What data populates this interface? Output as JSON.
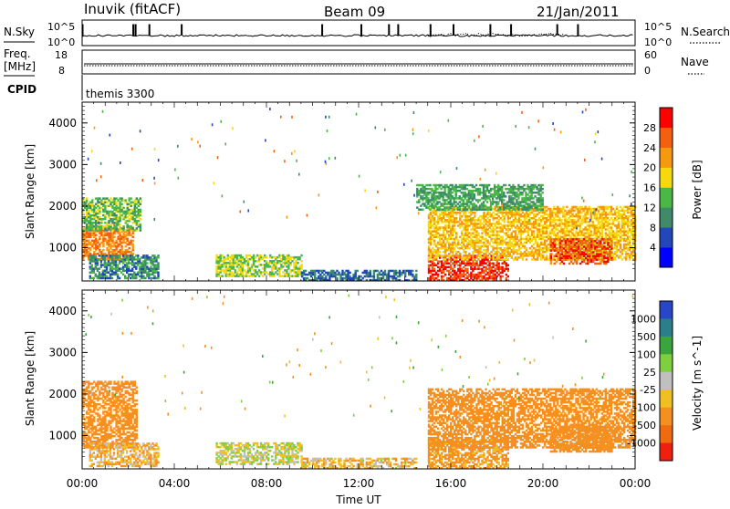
{
  "header": {
    "station": "Inuvik (fitACF)",
    "beam": "Beam 09",
    "date": "21/Jan/2011"
  },
  "strip_nsky": {
    "left_label": "N.Sky",
    "top_tick": "10^5",
    "bottom_tick": "10^0",
    "right_label": "N.Search",
    "right_top_tick": "10^5",
    "right_bottom_tick": "10^0"
  },
  "strip_freq": {
    "left_label_1": "Freq.",
    "left_label_2": "[MHz]",
    "left_top_tick": "18",
    "left_bottom_tick": "8",
    "right_label": "Nave",
    "right_top_tick": "60",
    "right_bottom_tick": "0"
  },
  "strip_cpid": {
    "left_label": "CPID",
    "program": "themis 3300"
  },
  "colors": {
    "power": [
      "#0000ff",
      "#2147b8",
      "#3e8a6a",
      "#4bb846",
      "#f5d90f",
      "#f59a0f",
      "#f5600f",
      "#ff0000"
    ],
    "velocity": [
      "#2846c8",
      "#2b7f8a",
      "#3aa53a",
      "#7fd040",
      "#c0c0c0",
      "#f0c020",
      "#f59020",
      "#f06a10",
      "#f02010"
    ]
  },
  "chart_data": [
    {
      "type": "heatmap",
      "name": "power",
      "ylabel": "Slant Range [km]",
      "ylim": [
        200,
        4500
      ],
      "y_ticks": [
        "1000",
        "2000",
        "3000",
        "4000"
      ],
      "colorbar_label": "Power [dB]",
      "colorbar_ticks": [
        "4",
        "8",
        "12",
        "16",
        "20",
        "24",
        "28"
      ],
      "colorbar_range": [
        0,
        32
      ],
      "regions": [
        {
          "t0": 0.0,
          "t1": 2.2,
          "r0": 700,
          "r1": 1500,
          "value": 24
        },
        {
          "t0": 0.0,
          "t1": 2.5,
          "r0": 1400,
          "r1": 2200,
          "value": 14
        },
        {
          "t0": 0.3,
          "t1": 3.3,
          "r0": 250,
          "r1": 800,
          "value": 10
        },
        {
          "t0": 5.8,
          "t1": 9.5,
          "r0": 300,
          "r1": 800,
          "value": 16
        },
        {
          "t0": 9.5,
          "t1": 14.5,
          "r0": 200,
          "r1": 450,
          "value": 8
        },
        {
          "t0": 15.0,
          "t1": 18.5,
          "r0": 200,
          "r1": 800,
          "value": 28
        },
        {
          "t0": 15.0,
          "t1": 24.0,
          "r0": 700,
          "r1": 2000,
          "value": 20
        },
        {
          "t0": 20.3,
          "t1": 23.0,
          "r0": 600,
          "r1": 1200,
          "value": 27
        },
        {
          "t0": 14.5,
          "t1": 20.0,
          "r0": 1900,
          "r1": 2500,
          "value": 12
        }
      ]
    },
    {
      "type": "heatmap",
      "name": "velocity",
      "ylabel": "Slant Range [km]",
      "xlabel": "Time UT",
      "ylim": [
        200,
        4500
      ],
      "y_ticks": [
        "1000",
        "2000",
        "3000",
        "4000"
      ],
      "x_ticks": [
        "00:00",
        "04:00",
        "08:00",
        "12:00",
        "16:00",
        "20:00",
        "00:00"
      ],
      "xlim": [
        0,
        24
      ],
      "colorbar_label": "Velocity [m s^-1]",
      "colorbar_ticks": [
        "1000",
        "500",
        "100",
        "25",
        "-25",
        "-100",
        "-500",
        "-1000"
      ],
      "regions": [
        {
          "t0": 0.0,
          "t1": 2.4,
          "r0": 700,
          "r1": 2300,
          "value": -200
        },
        {
          "t0": 0.3,
          "t1": 3.3,
          "r0": 250,
          "r1": 800,
          "value": -80
        },
        {
          "t0": 5.8,
          "t1": 9.5,
          "r0": 300,
          "r1": 800,
          "value": 0
        },
        {
          "t0": 9.5,
          "t1": 14.5,
          "r0": 200,
          "r1": 450,
          "value": -60
        },
        {
          "t0": 15.0,
          "t1": 18.5,
          "r0": 200,
          "r1": 900,
          "value": -150
        },
        {
          "t0": 15.0,
          "t1": 24.0,
          "r0": 700,
          "r1": 2100,
          "value": -300
        },
        {
          "t0": 20.3,
          "t1": 23.0,
          "r0": 600,
          "r1": 1200,
          "value": -400
        }
      ]
    }
  ]
}
